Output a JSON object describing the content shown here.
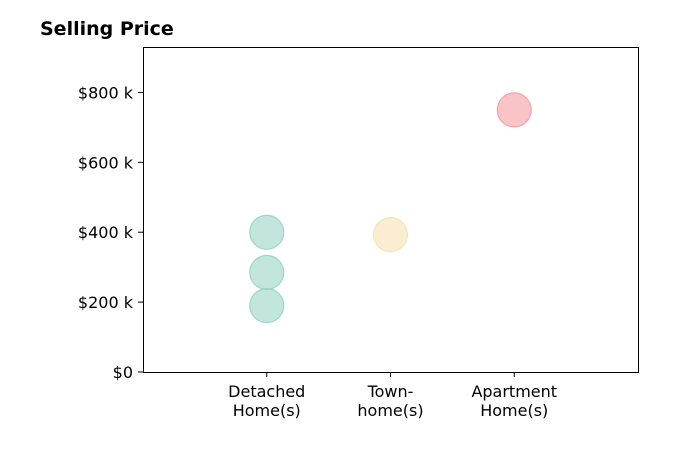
{
  "chart_data": {
    "type": "scatter",
    "title": "Selling Price",
    "xlabel": "",
    "ylabel": "",
    "categories": [
      [
        "Detached",
        "Home(s)"
      ],
      [
        "Town-",
        "home(s)"
      ],
      [
        "Apartment",
        "Home(s)"
      ]
    ],
    "xlim": [
      0,
      4
    ],
    "ylim": [
      0,
      930
    ],
    "yticks": [
      0,
      200,
      400,
      600,
      800
    ],
    "ytick_labels": [
      "$0",
      "$200 k",
      "$400 k",
      "$600 k",
      "$800 k"
    ],
    "grid": false,
    "points": [
      {
        "category": 1,
        "value": 400,
        "color": "#8fcfc3"
      },
      {
        "category": 1,
        "value": 285,
        "color": "#8fcfc3"
      },
      {
        "category": 1,
        "value": 190,
        "color": "#8fcfc3"
      },
      {
        "category": 2,
        "value": 393,
        "color": "#f5dfad"
      },
      {
        "category": 3,
        "value": 750,
        "color": "#f2939b"
      }
    ]
  }
}
